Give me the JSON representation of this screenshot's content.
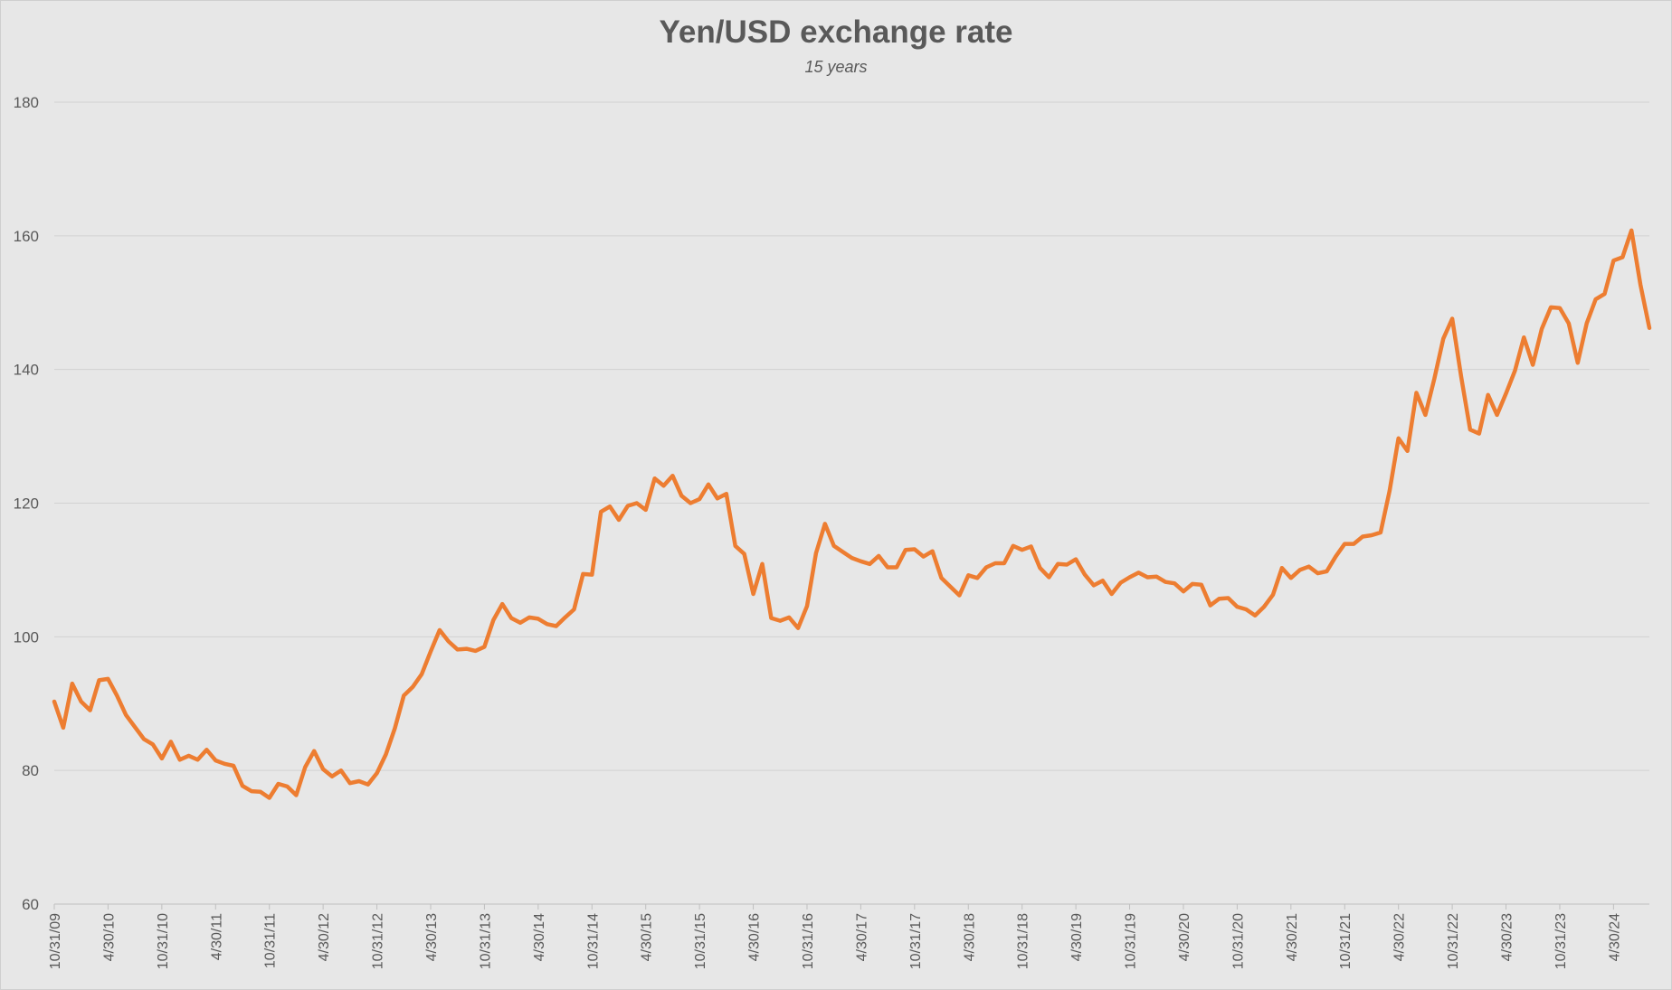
{
  "chart_data": {
    "type": "line",
    "title": "Yen/USD exchange rate",
    "subtitle": "15 years",
    "xlabel": "",
    "ylabel": "",
    "ylim": [
      60,
      180
    ],
    "yticks": [
      60,
      80,
      100,
      120,
      140,
      160,
      180
    ],
    "grid": true,
    "legend": "none",
    "line_color": "#ED7D31",
    "x_tick_labels": [
      "10/31/09",
      "4/30/10",
      "10/31/10",
      "4/30/11",
      "10/31/11",
      "4/30/12",
      "10/31/12",
      "4/30/13",
      "10/31/13",
      "4/30/14",
      "10/31/14",
      "4/30/15",
      "10/31/15",
      "4/30/16",
      "10/31/16",
      "4/30/17",
      "10/31/17",
      "4/30/18",
      "10/31/18",
      "4/30/19",
      "10/31/19",
      "4/30/20",
      "10/31/20",
      "4/30/21",
      "10/31/21",
      "4/30/22",
      "10/31/22",
      "4/30/23",
      "10/31/23",
      "4/30/24"
    ],
    "x_start": "10/31/09",
    "x_end": "8/31/24",
    "series": [
      {
        "name": "",
        "values": [
          90.3,
          86.4,
          93.0,
          90.3,
          89.0,
          93.5,
          93.7,
          91.2,
          88.3,
          86.5,
          84.7,
          83.9,
          81.8,
          84.3,
          81.6,
          82.2,
          81.6,
          83.1,
          81.5,
          81.0,
          80.7,
          77.7,
          76.9,
          76.8,
          75.9,
          78.0,
          77.6,
          76.3,
          80.5,
          82.9,
          80.2,
          79.1,
          80.0,
          78.1,
          78.4,
          77.9,
          79.6,
          82.4,
          86.3,
          91.2,
          92.5,
          94.4,
          97.8,
          101.0,
          99.3,
          98.1,
          98.2,
          97.9,
          98.5,
          102.5,
          104.9,
          102.8,
          102.1,
          102.9,
          102.7,
          101.9,
          101.6,
          102.9,
          104.1,
          109.4,
          109.3,
          118.7,
          119.5,
          117.5,
          119.6,
          120.0,
          119.0,
          123.7,
          122.6,
          124.1,
          121.1,
          120.0,
          120.6,
          122.8,
          120.7,
          121.4,
          113.6,
          112.4,
          106.4,
          110.9,
          102.8,
          102.4,
          102.9,
          101.3,
          104.6,
          112.5,
          116.9,
          113.6,
          112.7,
          111.8,
          111.3,
          110.9,
          112.1,
          110.4,
          110.4,
          113.0,
          113.1,
          112.0,
          112.8,
          108.8,
          107.5,
          106.2,
          109.2,
          108.8,
          110.4,
          111.0,
          111.0,
          113.6,
          113.0,
          113.5,
          110.3,
          108.9,
          110.9,
          110.8,
          111.6,
          109.3,
          107.7,
          108.4,
          106.4,
          108.1,
          108.9,
          109.6,
          108.9,
          109.0,
          108.2,
          108.0,
          106.8,
          107.9,
          107.8,
          104.7,
          105.7,
          105.8,
          104.5,
          104.1,
          103.2,
          104.5,
          106.3,
          110.3,
          108.8,
          110.0,
          110.5,
          109.5,
          109.8,
          112.0,
          113.9,
          113.9,
          115.0,
          115.2,
          115.6,
          121.8,
          129.7,
          127.8,
          136.5,
          133.2,
          138.6,
          144.6,
          147.6,
          138.9,
          131.0,
          130.4,
          136.2,
          133.2,
          136.4,
          139.8,
          144.8,
          140.7,
          146.1,
          149.3,
          149.2,
          146.9,
          141.0,
          146.9,
          150.5,
          151.3,
          156.3,
          156.8,
          160.8,
          152.7,
          146.2
        ]
      }
    ]
  }
}
